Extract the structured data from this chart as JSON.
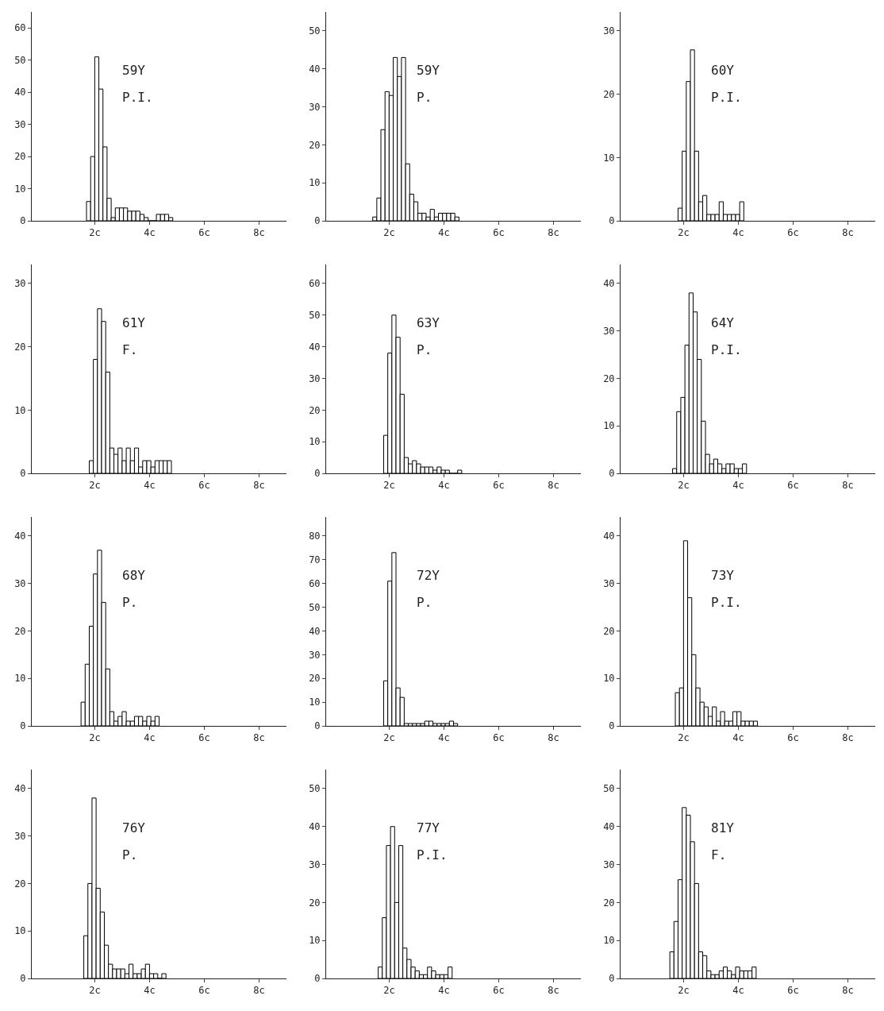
{
  "chart_data": [
    {
      "type": "histogram",
      "annotations": [
        "59Y",
        "P.I."
      ],
      "color": "#000000",
      "bins": [
        1.7,
        1.85,
        2.0,
        2.15,
        2.3,
        2.45,
        2.6,
        2.75,
        2.9,
        3.05,
        3.2,
        3.35,
        3.5,
        3.65,
        3.8,
        3.95,
        4.1,
        4.25,
        4.4,
        4.55,
        4.7,
        4.85
      ],
      "values": [
        6,
        20,
        51,
        41,
        23,
        7,
        1,
        4,
        4,
        4,
        3,
        3,
        3,
        2,
        1,
        0,
        0,
        2,
        2,
        2,
        1
      ],
      "xlim": [
        -0.3,
        9.0
      ],
      "xticks": [
        {
          "value": 2,
          "label": "2c"
        },
        {
          "value": 4,
          "label": "4c"
        },
        {
          "value": 6,
          "label": "6c"
        },
        {
          "value": 8,
          "label": "8c"
        }
      ],
      "ylim": [
        0,
        65
      ],
      "yticks": [
        0,
        10,
        20,
        30,
        40,
        50,
        60
      ]
    },
    {
      "type": "histogram",
      "annotations": [
        "59Y",
        "P."
      ],
      "color": "#000000",
      "bins": [
        1.4,
        1.55,
        1.7,
        1.85,
        2.0,
        2.15,
        2.3,
        2.45,
        2.6,
        2.75,
        2.9,
        3.05,
        3.2,
        3.35,
        3.5,
        3.65,
        3.8,
        3.95,
        4.1,
        4.25,
        4.4,
        4.55
      ],
      "values": [
        1,
        6,
        24,
        34,
        33,
        43,
        38,
        43,
        15,
        7,
        5,
        2,
        2,
        1,
        3,
        1,
        2,
        2,
        2,
        2,
        1
      ],
      "xlim": [
        -0.3,
        9.0
      ],
      "xticks": [
        {
          "value": 2,
          "label": "2c"
        },
        {
          "value": 4,
          "label": "4c"
        },
        {
          "value": 6,
          "label": "6c"
        },
        {
          "value": 8,
          "label": "8c"
        }
      ],
      "ylim": [
        0,
        55
      ],
      "yticks": [
        0,
        10,
        20,
        30,
        40,
        50
      ]
    },
    {
      "type": "histogram",
      "annotations": [
        "60Y",
        "P.I."
      ],
      "color": "#000000",
      "bins": [
        1.8,
        1.95,
        2.1,
        2.25,
        2.4,
        2.55,
        2.7,
        2.85,
        3.0,
        3.15,
        3.3,
        3.45,
        3.6,
        3.75,
        3.9,
        4.05,
        4.2
      ],
      "values": [
        2,
        11,
        22,
        27,
        11,
        3,
        4,
        1,
        1,
        1,
        3,
        1,
        1,
        1,
        1,
        3
      ],
      "xlim": [
        -0.3,
        9.0
      ],
      "xticks": [
        {
          "value": 2,
          "label": "2c"
        },
        {
          "value": 4,
          "label": "4c"
        },
        {
          "value": 6,
          "label": "6c"
        },
        {
          "value": 8,
          "label": "8c"
        }
      ],
      "ylim": [
        0,
        33
      ],
      "yticks": [
        0,
        10,
        20,
        30
      ]
    },
    {
      "type": "histogram",
      "annotations": [
        "61Y",
        "F."
      ],
      "color": "#000000",
      "bins": [
        1.8,
        1.95,
        2.1,
        2.25,
        2.4,
        2.55,
        2.7,
        2.85,
        3.0,
        3.15,
        3.3,
        3.45,
        3.6,
        3.75,
        3.9,
        4.05,
        4.2,
        4.35,
        4.5,
        4.65,
        4.8
      ],
      "values": [
        2,
        18,
        26,
        24,
        16,
        4,
        3,
        4,
        2,
        4,
        2,
        4,
        1,
        2,
        2,
        1,
        2,
        2,
        2,
        2
      ],
      "xlim": [
        -0.3,
        9.0
      ],
      "xticks": [
        {
          "value": 2,
          "label": "2c"
        },
        {
          "value": 4,
          "label": "4c"
        },
        {
          "value": 6,
          "label": "6c"
        },
        {
          "value": 8,
          "label": "8c"
        }
      ],
      "ylim": [
        0,
        33
      ],
      "yticks": [
        0,
        10,
        20,
        30
      ]
    },
    {
      "type": "histogram",
      "annotations": [
        "63Y",
        "P."
      ],
      "color": "#000000",
      "bins": [
        1.8,
        1.95,
        2.1,
        2.25,
        2.4,
        2.55,
        2.7,
        2.85,
        3.0,
        3.15,
        3.3,
        3.45,
        3.6,
        3.75,
        3.9,
        4.05,
        4.2,
        4.35,
        4.5,
        4.65
      ],
      "values": [
        12,
        38,
        50,
        43,
        25,
        5,
        3,
        4,
        3,
        2,
        2,
        2,
        1,
        2,
        1,
        1,
        0,
        0,
        1
      ],
      "xlim": [
        -0.3,
        9.0
      ],
      "xticks": [
        {
          "value": 2,
          "label": "2c"
        },
        {
          "value": 4,
          "label": "4c"
        },
        {
          "value": 6,
          "label": "6c"
        },
        {
          "value": 8,
          "label": "8c"
        }
      ],
      "ylim": [
        0,
        66
      ],
      "yticks": [
        0,
        10,
        20,
        30,
        40,
        50,
        60
      ]
    },
    {
      "type": "histogram",
      "annotations": [
        "64Y",
        "P.I."
      ],
      "color": "#000000",
      "bins": [
        1.6,
        1.75,
        1.9,
        2.05,
        2.2,
        2.35,
        2.5,
        2.65,
        2.8,
        2.95,
        3.1,
        3.25,
        3.4,
        3.55,
        3.7,
        3.85,
        4.0,
        4.15,
        4.3
      ],
      "values": [
        1,
        13,
        16,
        27,
        38,
        34,
        24,
        11,
        4,
        2,
        3,
        2,
        1,
        2,
        2,
        1,
        1,
        2
      ],
      "xlim": [
        -0.3,
        9.0
      ],
      "xticks": [
        {
          "value": 2,
          "label": "2c"
        },
        {
          "value": 4,
          "label": "4c"
        },
        {
          "value": 6,
          "label": "6c"
        },
        {
          "value": 8,
          "label": "8c"
        }
      ],
      "ylim": [
        0,
        44
      ],
      "yticks": [
        0,
        10,
        20,
        30,
        40
      ]
    },
    {
      "type": "histogram",
      "annotations": [
        "68Y",
        "P."
      ],
      "color": "#000000",
      "bins": [
        1.5,
        1.65,
        1.8,
        1.95,
        2.1,
        2.25,
        2.4,
        2.55,
        2.7,
        2.85,
        3.0,
        3.15,
        3.3,
        3.45,
        3.6,
        3.75,
        3.9,
        4.05,
        4.2,
        4.35
      ],
      "values": [
        5,
        13,
        21,
        32,
        37,
        26,
        12,
        3,
        1,
        2,
        3,
        1,
        1,
        2,
        2,
        1,
        2,
        1,
        2
      ],
      "xlim": [
        -0.3,
        9.0
      ],
      "xticks": [
        {
          "value": 2,
          "label": "2c"
        },
        {
          "value": 4,
          "label": "4c"
        },
        {
          "value": 6,
          "label": "6c"
        },
        {
          "value": 8,
          "label": "8c"
        }
      ],
      "ylim": [
        0,
        44
      ],
      "yticks": [
        0,
        10,
        20,
        30,
        40
      ]
    },
    {
      "type": "histogram",
      "annotations": [
        "72Y",
        "P."
      ],
      "color": "#000000",
      "bins": [
        1.8,
        1.95,
        2.1,
        2.25,
        2.4,
        2.55,
        2.7,
        2.85,
        3.0,
        3.15,
        3.3,
        3.45,
        3.6,
        3.75,
        3.9,
        4.05,
        4.2,
        4.35,
        4.5
      ],
      "values": [
        19,
        61,
        73,
        16,
        12,
        1,
        1,
        1,
        1,
        1,
        2,
        2,
        1,
        1,
        1,
        1,
        2,
        1
      ],
      "xlim": [
        -0.3,
        9.0
      ],
      "xticks": [
        {
          "value": 2,
          "label": "2c"
        },
        {
          "value": 4,
          "label": "4c"
        },
        {
          "value": 6,
          "label": "6c"
        },
        {
          "value": 8,
          "label": "8c"
        }
      ],
      "ylim": [
        0,
        88
      ],
      "yticks": [
        0,
        10,
        20,
        30,
        40,
        50,
        60,
        70,
        80
      ]
    },
    {
      "type": "histogram",
      "annotations": [
        "73Y",
        "P.I."
      ],
      "color": "#000000",
      "bins": [
        1.7,
        1.85,
        2.0,
        2.15,
        2.3,
        2.45,
        2.6,
        2.75,
        2.9,
        3.05,
        3.2,
        3.35,
        3.5,
        3.65,
        3.8,
        3.95,
        4.1,
        4.25,
        4.4,
        4.55,
        4.7
      ],
      "values": [
        7,
        8,
        39,
        27,
        15,
        8,
        5,
        4,
        2,
        4,
        1,
        3,
        1,
        1,
        3,
        3,
        1,
        1,
        1,
        1
      ],
      "xlim": [
        -0.3,
        9.0
      ],
      "xticks": [
        {
          "value": 2,
          "label": "2c"
        },
        {
          "value": 4,
          "label": "4c"
        },
        {
          "value": 6,
          "label": "6c"
        },
        {
          "value": 8,
          "label": "8c"
        }
      ],
      "ylim": [
        0,
        44
      ],
      "yticks": [
        0,
        10,
        20,
        30,
        40
      ]
    },
    {
      "type": "histogram",
      "annotations": [
        "76Y",
        "P."
      ],
      "color": "#000000",
      "bins": [
        1.6,
        1.75,
        1.9,
        2.05,
        2.2,
        2.35,
        2.5,
        2.65,
        2.8,
        2.95,
        3.1,
        3.25,
        3.4,
        3.55,
        3.7,
        3.85,
        4.0,
        4.15,
        4.3,
        4.45,
        4.6
      ],
      "values": [
        9,
        20,
        38,
        19,
        14,
        7,
        3,
        2,
        2,
        2,
        1,
        3,
        1,
        1,
        2,
        3,
        1,
        1,
        0,
        1
      ],
      "xlim": [
        -0.3,
        9.0
      ],
      "xticks": [
        {
          "value": 2,
          "label": "2c"
        },
        {
          "value": 4,
          "label": "4c"
        },
        {
          "value": 6,
          "label": "6c"
        },
        {
          "value": 8,
          "label": "8c"
        }
      ],
      "ylim": [
        0,
        44
      ],
      "yticks": [
        0,
        10,
        20,
        30,
        40
      ]
    },
    {
      "type": "histogram",
      "annotations": [
        "77Y",
        "P.I."
      ],
      "color": "#000000",
      "bins": [
        1.6,
        1.75,
        1.9,
        2.05,
        2.2,
        2.35,
        2.5,
        2.65,
        2.8,
        2.95,
        3.1,
        3.25,
        3.4,
        3.55,
        3.7,
        3.85,
        4.0,
        4.15,
        4.3
      ],
      "values": [
        3,
        16,
        35,
        40,
        20,
        35,
        8,
        5,
        3,
        2,
        1,
        1,
        3,
        2,
        1,
        1,
        1,
        3
      ],
      "xlim": [
        -0.3,
        9.0
      ],
      "xticks": [
        {
          "value": 2,
          "label": "2c"
        },
        {
          "value": 4,
          "label": "4c"
        },
        {
          "value": 6,
          "label": "6c"
        },
        {
          "value": 8,
          "label": "8c"
        }
      ],
      "ylim": [
        0,
        55
      ],
      "yticks": [
        0,
        10,
        20,
        30,
        40,
        50
      ]
    },
    {
      "type": "histogram",
      "annotations": [
        "81Y",
        "F."
      ],
      "color": "#000000",
      "bins": [
        1.5,
        1.65,
        1.8,
        1.95,
        2.1,
        2.25,
        2.4,
        2.55,
        2.7,
        2.85,
        3.0,
        3.15,
        3.3,
        3.45,
        3.6,
        3.75,
        3.9,
        4.05,
        4.2,
        4.35,
        4.5,
        4.65
      ],
      "values": [
        7,
        15,
        26,
        45,
        43,
        36,
        25,
        7,
        6,
        2,
        1,
        1,
        2,
        3,
        2,
        1,
        3,
        2,
        2,
        2,
        3
      ],
      "xlim": [
        -0.3,
        9.0
      ],
      "xticks": [
        {
          "value": 2,
          "label": "2c"
        },
        {
          "value": 4,
          "label": "4c"
        },
        {
          "value": 6,
          "label": "6c"
        },
        {
          "value": 8,
          "label": "8c"
        }
      ],
      "ylim": [
        0,
        55
      ],
      "yticks": [
        0,
        10,
        20,
        30,
        40,
        50
      ]
    }
  ]
}
